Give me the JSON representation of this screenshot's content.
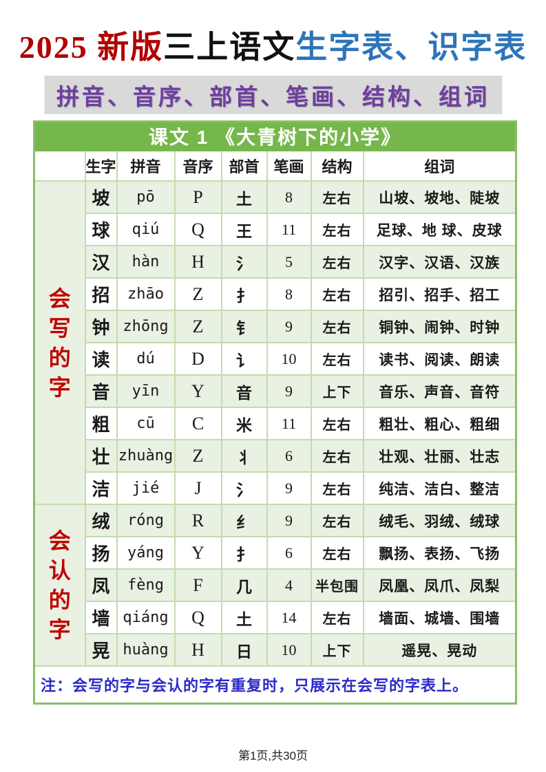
{
  "header": {
    "title_red": "2025 新版",
    "title_black": "三上语文",
    "title_blue": "生字表、识字表",
    "subtitle": "拼音、音序、部首、笔画、结构、组词"
  },
  "table": {
    "lesson_title": "课文 1 《大青树下的小学》",
    "columns": [
      "生字",
      "拼音",
      "音序",
      "部首",
      "笔画",
      "结构",
      "组词"
    ],
    "sections": [
      {
        "label": "会写的字",
        "rows": [
          {
            "char": "坡",
            "pinyin": "pō",
            "initial": "P",
            "radical": "土",
            "strokes": "8",
            "structure": "左右",
            "words": "山坡、坡地、陡坡"
          },
          {
            "char": "球",
            "pinyin": "qiú",
            "initial": "Q",
            "radical": "王",
            "strokes": "11",
            "structure": "左右",
            "words": "足球、地 球、皮球"
          },
          {
            "char": "汉",
            "pinyin": "hàn",
            "initial": "H",
            "radical": "氵",
            "strokes": "5",
            "structure": "左右",
            "words": "汉字、汉语、汉族"
          },
          {
            "char": "招",
            "pinyin": "zhāo",
            "initial": "Z",
            "radical": "扌",
            "strokes": "8",
            "structure": "左右",
            "words": "招引、招手、招工"
          },
          {
            "char": "钟",
            "pinyin": "zhōng",
            "initial": "Z",
            "radical": "钅",
            "strokes": "9",
            "structure": "左右",
            "words": "铜钟、闹钟、时钟"
          },
          {
            "char": "读",
            "pinyin": "dú",
            "initial": "D",
            "radical": "讠",
            "strokes": "10",
            "structure": "左右",
            "words": "读书、阅读、朗读"
          },
          {
            "char": "音",
            "pinyin": "yīn",
            "initial": "Y",
            "radical": "音",
            "strokes": "9",
            "structure": "上下",
            "words": "音乐、声音、音符"
          },
          {
            "char": "粗",
            "pinyin": "cū",
            "initial": "C",
            "radical": "米",
            "strokes": "11",
            "structure": "左右",
            "words": "粗壮、粗心、粗细"
          },
          {
            "char": "壮",
            "pinyin": "zhuàng",
            "initial": "Z",
            "radical": "丬",
            "strokes": "6",
            "structure": "左右",
            "words": "壮观、壮丽、壮志"
          },
          {
            "char": "洁",
            "pinyin": "jié",
            "initial": "J",
            "radical": "氵",
            "strokes": "9",
            "structure": "左右",
            "words": "纯洁、洁白、整洁"
          }
        ]
      },
      {
        "label": "会认的字",
        "rows": [
          {
            "char": "绒",
            "pinyin": "róng",
            "initial": "R",
            "radical": "纟",
            "strokes": "9",
            "structure": "左右",
            "words": "绒毛、羽绒、绒球"
          },
          {
            "char": "扬",
            "pinyin": "yáng",
            "initial": "Y",
            "radical": "扌",
            "strokes": "6",
            "structure": "左右",
            "words": "飘扬、表扬、飞扬"
          },
          {
            "char": "凤",
            "pinyin": "fèng",
            "initial": "F",
            "radical": "几",
            "strokes": "4",
            "structure": "半包围",
            "words": "凤凰、凤爪、凤梨"
          },
          {
            "char": "墙",
            "pinyin": "qiáng",
            "initial": "Q",
            "radical": "土",
            "strokes": "14",
            "structure": "左右",
            "words": "墙面、城墙、围墙"
          },
          {
            "char": "晃",
            "pinyin": "huàng",
            "initial": "H",
            "radical": "日",
            "strokes": "10",
            "structure": "上下",
            "words": "遥晃、晃动"
          }
        ]
      }
    ],
    "note": "注：会写的字与会认的字有重复时，只展示在会写的字表上。"
  },
  "footer": {
    "text": "第1页,共30页"
  },
  "colors": {
    "title_red": "#b00000",
    "title_blue": "#2f74b8",
    "subtitle_purple": "#6d3f9e",
    "subtitle_bg": "#d9d9d9",
    "header_green": "#76b74b",
    "row_green": "#e9f1e2",
    "section_red": "#c00000",
    "note_blue": "#2a2ac8"
  }
}
